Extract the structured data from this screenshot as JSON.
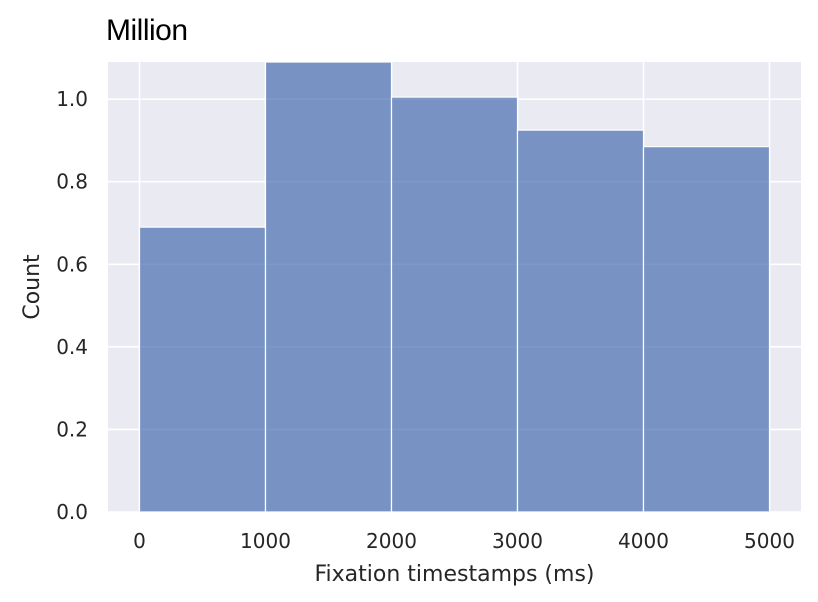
{
  "chart_data": {
    "type": "bar",
    "title": "Million",
    "xlabel": "Fixation timestamps (ms)",
    "ylabel": "Count",
    "bins": [
      {
        "x0": 0,
        "x1": 1000,
        "value": 0.69
      },
      {
        "x0": 1000,
        "x1": 2000,
        "value": 1.09
      },
      {
        "x0": 2000,
        "x1": 3000,
        "value": 1.005
      },
      {
        "x0": 3000,
        "x1": 4000,
        "value": 0.925
      },
      {
        "x0": 4000,
        "x1": 5000,
        "value": 0.885
      }
    ],
    "xlim": [
      -250,
      5250
    ],
    "ylim": [
      0,
      1.09
    ],
    "xticks": [
      0,
      1000,
      2000,
      3000,
      4000,
      5000
    ],
    "yticks": [
      0.0,
      0.2,
      0.4,
      0.6,
      0.8,
      1.0
    ],
    "xtick_labels": [
      "0",
      "1000",
      "2000",
      "3000",
      "4000",
      "5000"
    ],
    "ytick_labels": [
      "0.0",
      "0.2",
      "0.4",
      "0.6",
      "0.8",
      "1.0"
    ],
    "grid": true,
    "colors": {
      "bar": "#4c72b0",
      "background": "#eaeaf2",
      "grid": "#ffffff"
    }
  }
}
